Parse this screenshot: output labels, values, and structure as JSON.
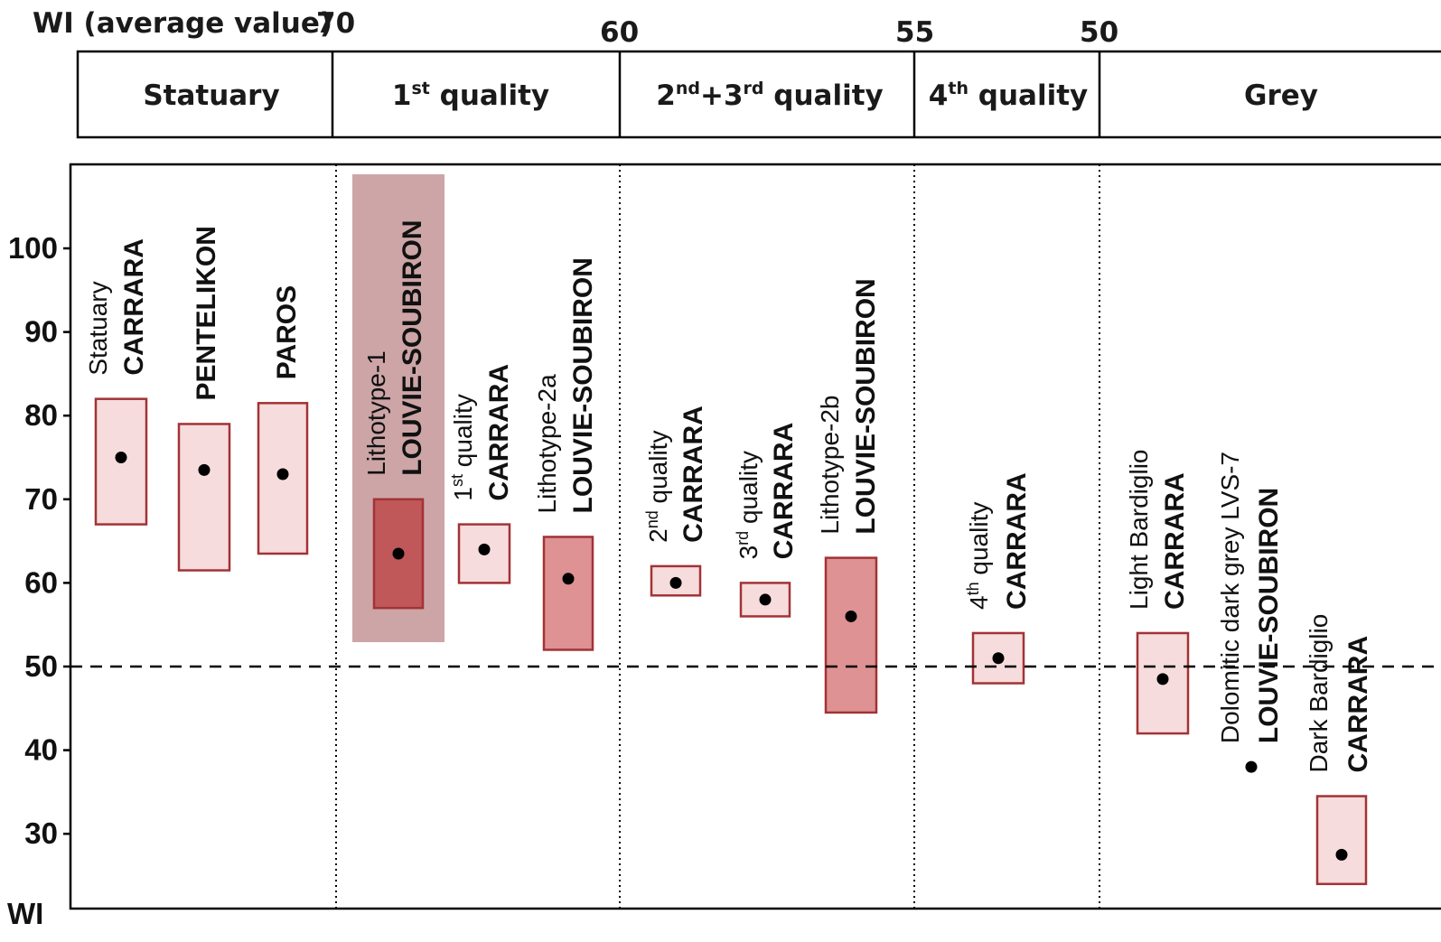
{
  "header": {
    "wi_label": "WI (average value)",
    "boundary_values": [
      "70",
      "60",
      "55",
      "50"
    ],
    "classes": [
      {
        "base": "Statuary",
        "sup": "",
        "tail": ""
      },
      {
        "base": "1",
        "sup": "st",
        "tail": " quality"
      },
      {
        "base": "2",
        "sup": "nd",
        "tail": "+3",
        "sup2": "rd",
        "tail2": " quality"
      },
      {
        "base": "4",
        "sup": "th",
        "tail": " quality"
      },
      {
        "base": "Grey",
        "sup": "",
        "tail": ""
      }
    ]
  },
  "colors": {
    "box_light": "#f6dcdc",
    "box_medium": "#de9293",
    "box_dark": "#c0585a",
    "box_border": "#a33236",
    "highlight": "#cda5a6",
    "point": "#000000"
  },
  "chart_data": {
    "type": "range",
    "y_axis_label": "WI",
    "ylim": [
      20,
      110
    ],
    "y_ticks": [
      "100",
      "90",
      "80",
      "70",
      "60",
      "50",
      "40",
      "30"
    ],
    "reference_line": 50,
    "column_dividers_dotted": true,
    "items": [
      {
        "group": "Statuary",
        "sub": "Statuary",
        "site": "CARRARA",
        "min": 67,
        "max": 82,
        "mean": 75,
        "fill": "light"
      },
      {
        "group": "Statuary",
        "sub": "",
        "site": "PENTELIKON",
        "min": 61.5,
        "max": 79,
        "mean": 73.5,
        "fill": "light"
      },
      {
        "group": "Statuary",
        "sub": "",
        "site": "PAROS",
        "min": 63.5,
        "max": 81.5,
        "mean": 73,
        "fill": "light"
      },
      {
        "group": "1st quality",
        "sub": "Lithotype-1",
        "site": "LOUVIE-SOUBIRON",
        "min": 57,
        "max": 70,
        "mean": 63.5,
        "fill": "dark",
        "highlighted": true
      },
      {
        "group": "1st quality",
        "sub_base": "1",
        "sub_sup": "st",
        "sub_tail": " quality",
        "site": "CARRARA",
        "min": 60,
        "max": 67,
        "mean": 64,
        "fill": "light"
      },
      {
        "group": "1st quality",
        "sub": "Lithotype-2a",
        "site": "LOUVIE-SOUBIRON",
        "min": 52,
        "max": 65.5,
        "mean": 60.5,
        "fill": "medium"
      },
      {
        "group": "2nd+3rd quality",
        "sub_base": "2",
        "sub_sup": "nd",
        "sub_tail": " quality",
        "site": "CARRARA",
        "min": 58.5,
        "max": 62,
        "mean": 60,
        "fill": "light"
      },
      {
        "group": "2nd+3rd quality",
        "sub_base": "3",
        "sub_sup": "rd",
        "sub_tail": " quality",
        "site": "CARRARA",
        "min": 56,
        "max": 60,
        "mean": 58,
        "fill": "light"
      },
      {
        "group": "2nd+3rd quality",
        "sub": "Lithotype-2b",
        "site": "LOUVIE-SOUBIRON",
        "min": 44.5,
        "max": 63,
        "mean": 56,
        "fill": "medium"
      },
      {
        "group": "4th quality",
        "sub_base": "4",
        "sub_sup": "th",
        "sub_tail": " quality",
        "site": "CARRARA",
        "min": 48,
        "max": 54,
        "mean": 51,
        "fill": "light"
      },
      {
        "group": "Grey",
        "sub": "Light Bardiglio",
        "site": "CARRARA",
        "min": 42,
        "max": 54,
        "mean": 48.5,
        "fill": "light"
      },
      {
        "group": "Grey",
        "sub": "Dolomitic dark grey  LVS-7",
        "site": "LOUVIE-SOUBIRON",
        "min": null,
        "max": null,
        "mean": 38,
        "fill": "none"
      },
      {
        "group": "Grey",
        "sub": "Dark Bardiglio",
        "site": "CARRARA",
        "min": 24,
        "max": 34.5,
        "mean": 27.5,
        "fill": "light"
      }
    ]
  }
}
